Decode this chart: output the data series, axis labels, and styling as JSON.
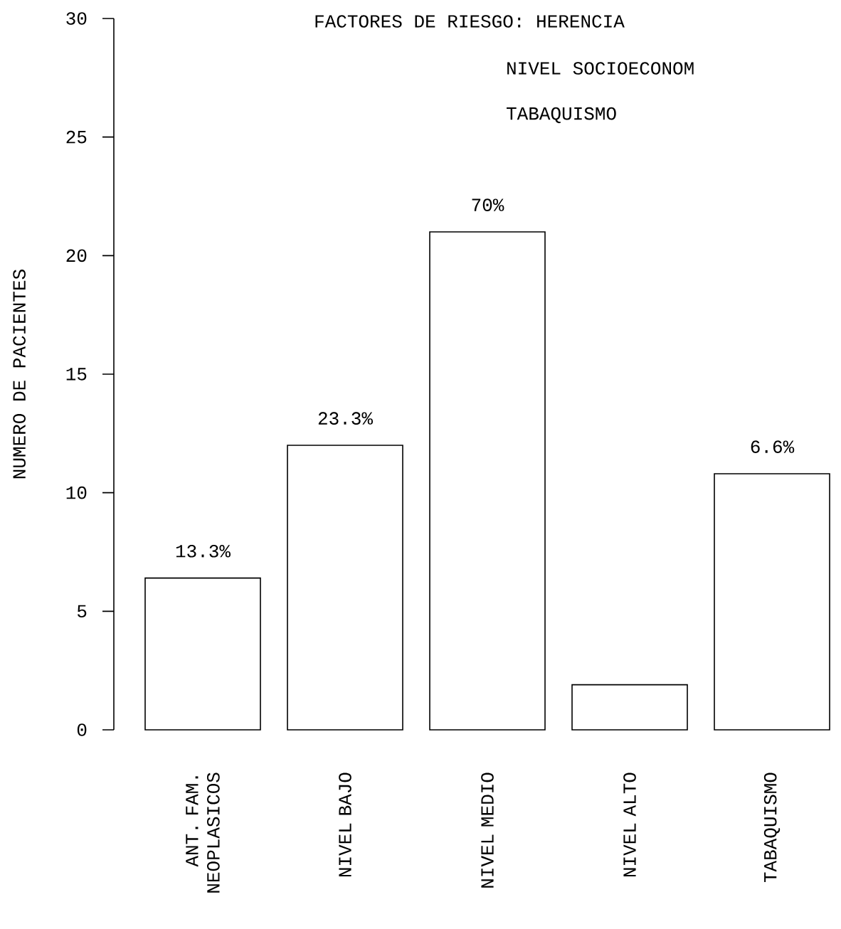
{
  "chart_data": {
    "type": "bar",
    "title": "FACTORES DE RIESGO: HERENCIA",
    "annotations": [
      "NIVEL SOCIOECONOM",
      "TABAQUISMO",
      {
        "text": "13.3%",
        "x": "ANT. FAM. NEOPLASICOS",
        "y": 6.4
      },
      {
        "text": "23.3%",
        "x": "NIVEL BAJO",
        "y": 12
      },
      {
        "text": "70%",
        "x": "NIVEL MEDIO",
        "y": 21
      },
      {
        "text": "6.6%",
        "x": "TABAQUISMO",
        "y": 10.8
      }
    ],
    "ylabel": "NUMERO DE PACIENTES",
    "categories": [
      "ANT. FAM. NEOPLASICOS",
      "NIVEL BAJO",
      "NIVEL MEDIO",
      "NIVEL ALTO",
      "TABAQUISMO"
    ],
    "values": [
      6.4,
      12,
      21,
      1.9,
      10.8
    ],
    "color": "#ffffff",
    "ylim": [
      0,
      30
    ],
    "yticks": [
      0,
      5,
      10,
      15,
      20,
      25,
      30
    ],
    "grid": false
  }
}
